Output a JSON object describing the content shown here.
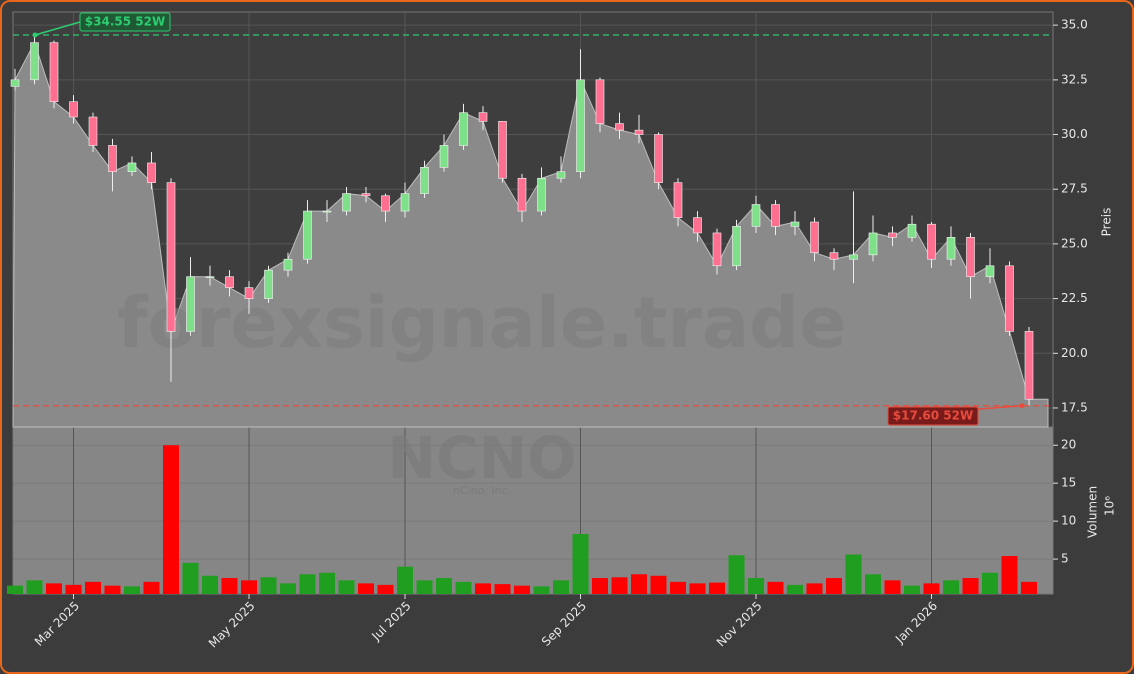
{
  "chart_data": {
    "type": "candlestick",
    "categories": [
      null,
      null,
      null,
      "Mar 2025",
      null,
      null,
      null,
      null,
      null,
      null,
      null,
      null,
      "May 2025",
      null,
      null,
      null,
      null,
      null,
      null,
      null,
      "Jul 2025",
      null,
      null,
      null,
      null,
      null,
      null,
      null,
      null,
      "Sep 2025",
      null,
      null,
      null,
      null,
      null,
      null,
      null,
      null,
      "Nov 2025",
      null,
      null,
      null,
      null,
      null,
      null,
      null,
      null,
      "Jan 2026",
      null,
      null,
      null,
      null,
      null
    ],
    "open": [
      32.2,
      32.5,
      34.2,
      31.5,
      30.8,
      29.5,
      28.3,
      28.7,
      27.8,
      21.0,
      23.5,
      23.5,
      23.0,
      22.5,
      23.8,
      24.3,
      26.5,
      26.5,
      27.3,
      27.2,
      26.5,
      27.3,
      28.5,
      29.5,
      31.0,
      30.6,
      28.0,
      26.5,
      28.0,
      28.3,
      32.5,
      30.5,
      30.2,
      30.0,
      27.8,
      26.2,
      25.5,
      24.0,
      25.8,
      26.8,
      25.8,
      26.0,
      24.6,
      24.3,
      24.5,
      25.5,
      25.3,
      25.9,
      24.3,
      25.3,
      23.5,
      24.0,
      21.0
    ],
    "high": [
      33.0,
      34.55,
      34.3,
      31.8,
      31.0,
      29.8,
      29.0,
      29.2,
      28.0,
      24.4,
      24.0,
      23.8,
      23.3,
      24.0,
      24.6,
      27.0,
      27.0,
      27.6,
      27.6,
      27.3,
      27.8,
      28.8,
      30.0,
      31.4,
      31.3,
      30.6,
      28.2,
      28.5,
      29.0,
      33.9,
      32.6,
      31.0,
      30.9,
      30.1,
      28.0,
      26.5,
      25.7,
      26.1,
      27.2,
      27.0,
      26.5,
      26.2,
      24.8,
      27.4,
      26.3,
      25.8,
      26.3,
      26.0,
      25.8,
      25.5,
      24.8,
      24.2,
      21.2
    ],
    "low": [
      32.0,
      32.3,
      31.2,
      30.5,
      29.2,
      27.4,
      28.1,
      27.5,
      18.7,
      20.8,
      23.1,
      22.6,
      21.8,
      22.3,
      23.5,
      24.1,
      26.0,
      26.3,
      26.9,
      26.0,
      26.2,
      27.1,
      28.3,
      29.3,
      30.2,
      27.8,
      26.0,
      26.3,
      27.8,
      28.0,
      30.1,
      29.8,
      29.6,
      27.5,
      25.8,
      25.1,
      23.6,
      23.8,
      25.5,
      25.4,
      25.4,
      24.2,
      23.8,
      23.2,
      24.2,
      24.9,
      25.1,
      23.9,
      24.0,
      22.5,
      23.2,
      20.8,
      17.6
    ],
    "close": [
      32.5,
      34.2,
      31.5,
      30.8,
      29.5,
      28.3,
      28.7,
      27.8,
      21.0,
      23.5,
      23.5,
      23.0,
      22.5,
      23.8,
      24.3,
      26.5,
      26.5,
      27.3,
      27.2,
      26.5,
      27.3,
      28.5,
      29.5,
      31.0,
      30.6,
      28.0,
      26.5,
      28.0,
      28.3,
      32.5,
      30.5,
      30.2,
      30.0,
      27.8,
      26.2,
      25.5,
      24.0,
      25.8,
      26.8,
      25.8,
      26.0,
      24.6,
      24.3,
      24.5,
      25.5,
      25.3,
      25.9,
      24.3,
      25.3,
      23.5,
      24.0,
      21.0,
      17.9
    ],
    "volume": [
      1.5,
      2.2,
      1.8,
      1.6,
      2.0,
      1.5,
      1.4,
      2.0,
      20.0,
      4.5,
      2.8,
      2.5,
      2.2,
      2.6,
      1.8,
      3.0,
      3.2,
      2.2,
      1.8,
      1.6,
      4.0,
      2.2,
      2.5,
      2.0,
      1.8,
      1.7,
      1.5,
      1.4,
      2.2,
      8.3,
      2.5,
      2.6,
      3.0,
      2.8,
      2.0,
      1.8,
      1.9,
      5.5,
      2.5,
      2.0,
      1.6,
      1.8,
      2.5,
      5.6,
      3.0,
      2.2,
      1.5,
      1.8,
      2.2,
      2.5,
      3.2,
      5.4,
      2.0
    ],
    "up_color": "#7fe08a",
    "down_color": "#ff6f8f",
    "volume_up_color": "#1f9e1f",
    "volume_down_color": "#ff0000",
    "ylim": [
      16.63,
      35.6
    ],
    "yticks": [
      {
        "value": 17.5,
        "label": "17.5"
      },
      {
        "value": 20,
        "label": "20.0"
      },
      {
        "value": 22.5,
        "label": "22.5"
      },
      {
        "value": 25,
        "label": "25.0"
      },
      {
        "value": 27.5,
        "label": "27.5"
      },
      {
        "value": 30,
        "label": "30.0"
      },
      {
        "value": 32.5,
        "label": "32.5"
      },
      {
        "value": 35,
        "label": "35.0"
      }
    ],
    "volume_ylim": [
      0.4,
      22.4
    ],
    "volume_yticks": [
      5,
      10,
      15,
      20
    ],
    "ylabel": "Preis",
    "volume_label": "Volumen",
    "volume_unit": "10⁶",
    "grid": true,
    "high_52w": {
      "value": 34.55,
      "label": "$34.55 52W",
      "color": "#2ecc71"
    },
    "low_52w": {
      "value": 17.6,
      "label": "$17.60 52W",
      "color": "#e74c3c"
    },
    "watermark": "forexsignale.trade",
    "ticker": "NCNO",
    "company": "nCino, Inc."
  }
}
